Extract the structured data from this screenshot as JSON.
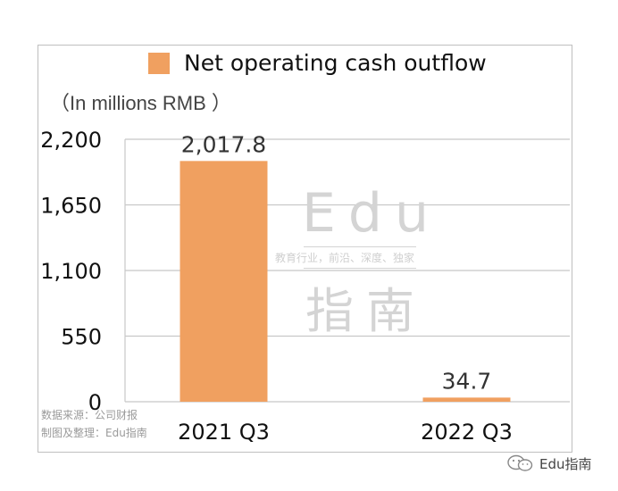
{
  "chart_data": {
    "type": "bar",
    "title": "",
    "units_label": "（In millions RMB ）",
    "legend": "Net operating cash outflow",
    "categories": [
      "2021 Q3",
      "2022 Q3"
    ],
    "series": [
      {
        "name": "Net operating cash outflow",
        "values": [
          2017.8,
          34.7
        ]
      }
    ],
    "data_labels": [
      "2,017.8",
      "34.7"
    ],
    "ylim": [
      0,
      2200
    ],
    "yticks": [
      0,
      550,
      1100,
      1650,
      2200
    ],
    "ytick_labels": [
      "0",
      "550",
      "1,100",
      "1,650",
      "2,200"
    ],
    "grid": true,
    "legend_position": "top",
    "colors": {
      "bar": "#f0a060",
      "grid": "#c8c8c8"
    }
  },
  "source_note": {
    "line1": "数据来源：公司财报",
    "line2": "制图及整理：Edu指南"
  },
  "watermark": {
    "line1": "Edu",
    "tagline": "教育行业，前沿、深度、独家",
    "line2": "指南"
  },
  "footer": {
    "account": "Edu指南",
    "icon": "wechat-icon"
  }
}
